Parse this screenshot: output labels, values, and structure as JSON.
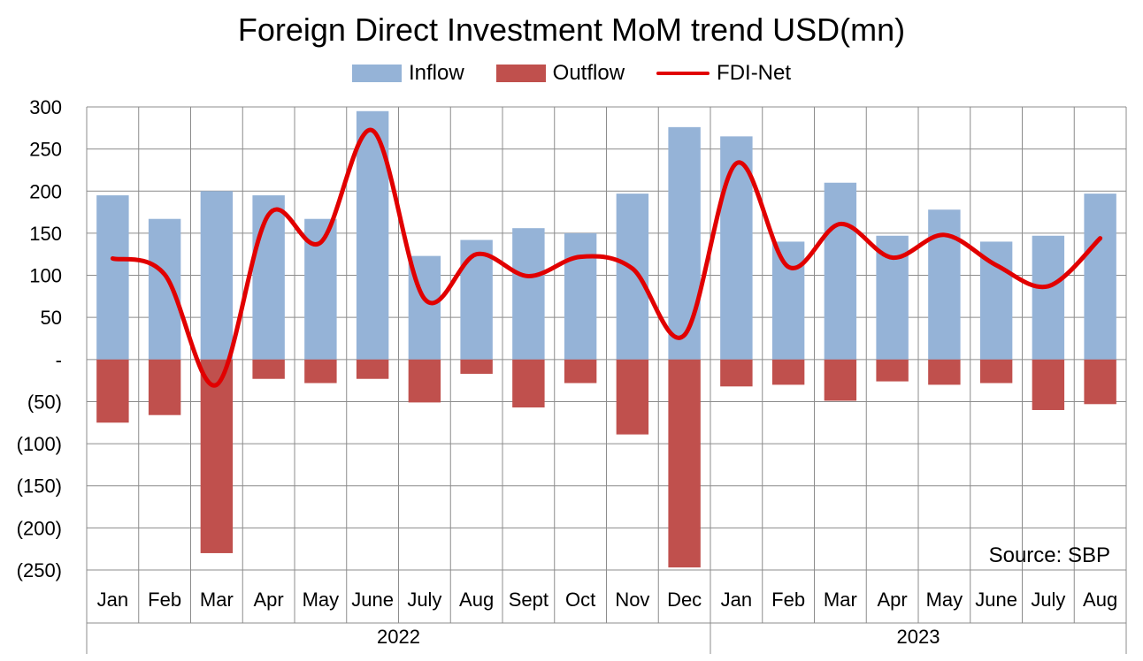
{
  "chart_data": {
    "type": "bar",
    "title": "Foreign Direct Investment MoM trend USD(mn)",
    "annotation": "Source:  SBP",
    "categories": [
      "Jan",
      "Feb",
      "Mar",
      "Apr",
      "May",
      "June",
      "July",
      "Aug",
      "Sept",
      "Oct",
      "Nov",
      "Dec",
      "Jan",
      "Feb",
      "Mar",
      "Apr",
      "May",
      "June",
      "July",
      "Aug"
    ],
    "year_groups": [
      {
        "label": "2022",
        "count": 12
      },
      {
        "label": "2023",
        "count": 8
      }
    ],
    "series": [
      {
        "name": "Inflow",
        "type": "bar",
        "color": "#95b3d7",
        "values": [
          195,
          167,
          200,
          195,
          167,
          295,
          123,
          142,
          156,
          150,
          197,
          276,
          265,
          140,
          210,
          147,
          178,
          140,
          147,
          197
        ]
      },
      {
        "name": "Outflow",
        "type": "bar",
        "color": "#c0504d",
        "values": [
          -75,
          -66,
          -230,
          -23,
          -28,
          -23,
          -51,
          -17,
          -57,
          -28,
          -89,
          -247,
          -32,
          -30,
          -49,
          -26,
          -30,
          -28,
          -60,
          -53
        ]
      },
      {
        "name": "FDI-Net",
        "type": "line",
        "color": "#e10000",
        "values": [
          120,
          101,
          -30,
          172,
          139,
          272,
          72,
          125,
          99,
          122,
          108,
          29,
          233,
          110,
          161,
          121,
          148,
          112,
          87,
          144
        ]
      }
    ],
    "ylim": [
      -250,
      300
    ],
    "yticks": [
      300,
      250,
      200,
      150,
      100,
      50,
      0,
      -50,
      -100,
      -150,
      -200,
      -250
    ],
    "ytick_labels": [
      "300",
      "250",
      "200",
      "150",
      "100",
      "50",
      "-",
      "(50)",
      "(100)",
      "(150)",
      "(200)",
      "(250)"
    ],
    "grid": true,
    "legend_position": "top-center"
  }
}
